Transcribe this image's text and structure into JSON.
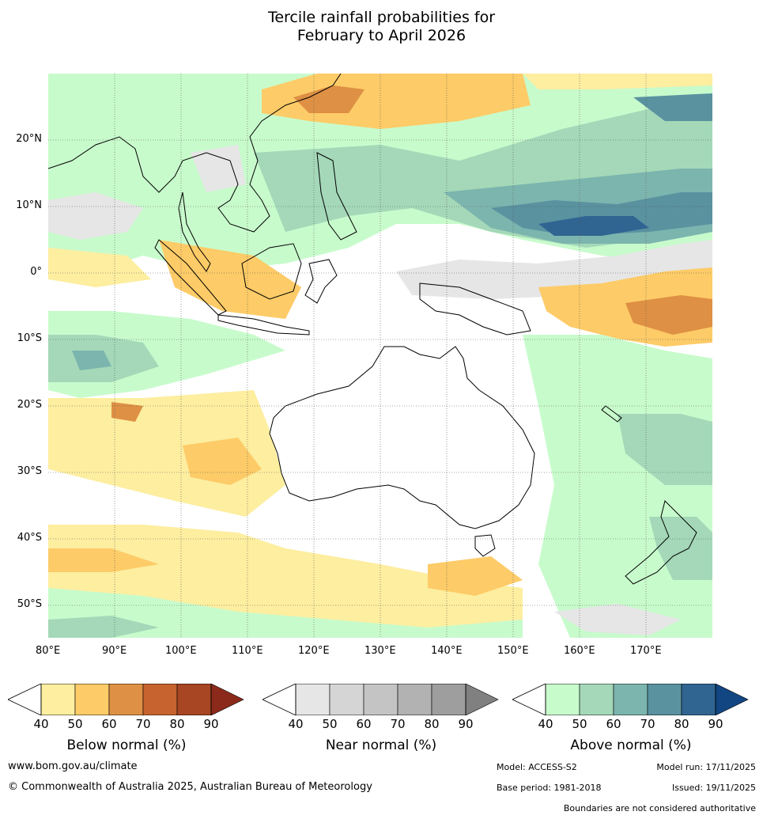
{
  "title": {
    "line1": "Tercile rainfall probabilities for",
    "line2": "February to April 2026"
  },
  "map": {
    "lon_labels": [
      "80°E",
      "90°E",
      "100°E",
      "110°E",
      "120°E",
      "130°E",
      "140°E",
      "150°E",
      "160°E",
      "170°E"
    ],
    "lat_labels": [
      "20°N",
      "10°N",
      "0°",
      "10°S",
      "20°S",
      "30°S",
      "40°S",
      "50°S"
    ]
  },
  "colorbars": [
    {
      "id": "below",
      "title": "Below normal (%)",
      "ticks": [
        "40",
        "50",
        "60",
        "70",
        "80",
        "90"
      ],
      "colors": [
        "#fdeea0",
        "#fdcb67",
        "#de9044",
        "#c7632e",
        "#a84523",
        "#8b2a1a"
      ]
    },
    {
      "id": "near",
      "title": "Near normal (%)",
      "ticks": [
        "40",
        "50",
        "60",
        "70",
        "80",
        "90"
      ],
      "colors": [
        "#e6e6e6",
        "#d5d5d5",
        "#c4c4c4",
        "#b2b2b2",
        "#9e9e9e",
        "#808080"
      ]
    },
    {
      "id": "above",
      "title": "Above normal (%)",
      "ticks": [
        "40",
        "50",
        "60",
        "70",
        "80",
        "90"
      ],
      "colors": [
        "#c8fbcc",
        "#a4d8b8",
        "#7cb5ae",
        "#5a92a0",
        "#306592",
        "#124682"
      ]
    }
  ],
  "footer": {
    "website": "www.bom.gov.au/climate",
    "copyright": "© Commonwealth of Australia 2025, Australian Bureau of Meteorology",
    "model": "Model: ACCESS-S2",
    "model_run": "Model run: 17/11/2025",
    "base_period": "Base period: 1981-2018",
    "issued": "Issued: 19/11/2025",
    "disclaimer": "Boundaries are not considered authoritative"
  }
}
